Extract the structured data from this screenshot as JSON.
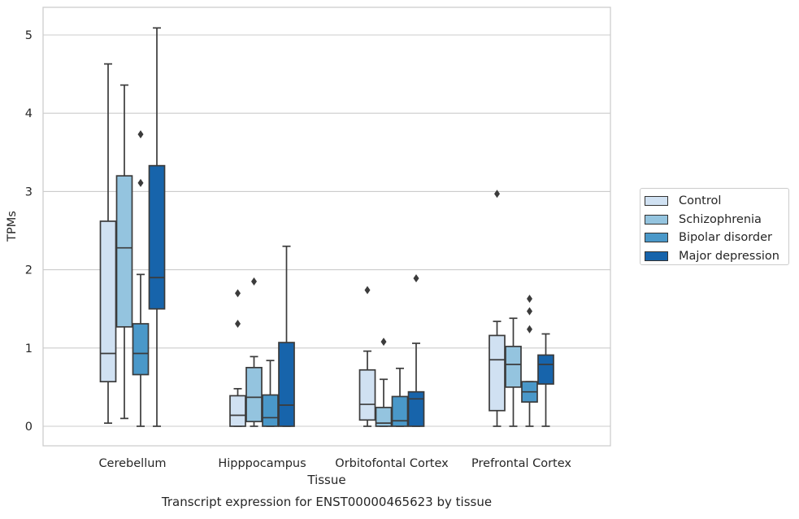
{
  "chart_data": {
    "type": "box",
    "title": "",
    "caption": "Transcript expression for ENST00000465623 by tissue",
    "xlabel": "Tissue",
    "ylabel": "TPMs",
    "ylim": [
      -0.25,
      5.35
    ],
    "yticks": [
      0,
      1,
      2,
      3,
      4,
      5
    ],
    "grid": "horizontal",
    "legend_position": "right",
    "categories": [
      "Cerebellum",
      "Hipppocampus",
      "Orbitofontal Cortex",
      "Prefrontal Cortex"
    ],
    "series": [
      {
        "name": "Control",
        "color": "#d0e1f2",
        "boxes": [
          {
            "min": 0.04,
            "q1": 0.57,
            "median": 0.93,
            "q3": 2.62,
            "max": 4.63,
            "outliers": []
          },
          {
            "min": 0.0,
            "q1": 0.0,
            "median": 0.14,
            "q3": 0.39,
            "max": 0.48,
            "outliers": [
              1.31,
              1.7
            ]
          },
          {
            "min": 0.0,
            "q1": 0.08,
            "median": 0.28,
            "q3": 0.72,
            "max": 0.96,
            "outliers": [
              1.74
            ]
          },
          {
            "min": 0.0,
            "q1": 0.2,
            "median": 0.85,
            "q3": 1.16,
            "max": 1.34,
            "outliers": [
              2.97
            ]
          }
        ]
      },
      {
        "name": "Schizophrenia",
        "color": "#94c4df",
        "boxes": [
          {
            "min": 0.1,
            "q1": 1.27,
            "median": 2.28,
            "q3": 3.2,
            "max": 4.36,
            "outliers": []
          },
          {
            "min": 0.0,
            "q1": 0.06,
            "median": 0.37,
            "q3": 0.75,
            "max": 0.89,
            "outliers": [
              1.85
            ]
          },
          {
            "min": 0.0,
            "q1": 0.0,
            "median": 0.04,
            "q3": 0.24,
            "max": 0.6,
            "outliers": [
              1.08
            ]
          },
          {
            "min": 0.0,
            "q1": 0.5,
            "median": 0.79,
            "q3": 1.02,
            "max": 1.38,
            "outliers": []
          }
        ]
      },
      {
        "name": "Bipolar disorder",
        "color": "#4a98c9",
        "boxes": [
          {
            "min": 0.0,
            "q1": 0.66,
            "median": 0.93,
            "q3": 1.31,
            "max": 1.94,
            "outliers": [
              3.11,
              3.73
            ]
          },
          {
            "min": 0.0,
            "q1": 0.0,
            "median": 0.11,
            "q3": 0.4,
            "max": 0.84,
            "outliers": []
          },
          {
            "min": 0.0,
            "q1": 0.0,
            "median": 0.07,
            "q3": 0.38,
            "max": 0.74,
            "outliers": []
          },
          {
            "min": 0.0,
            "q1": 0.31,
            "median": 0.44,
            "q3": 0.57,
            "max": 0.57,
            "outliers": [
              1.24,
              1.47,
              1.63
            ]
          }
        ]
      },
      {
        "name": "Major depression",
        "color": "#1764ab",
        "boxes": [
          {
            "min": 0.0,
            "q1": 1.5,
            "median": 1.9,
            "q3": 3.33,
            "max": 5.09,
            "outliers": []
          },
          {
            "min": 0.0,
            "q1": 0.0,
            "median": 0.27,
            "q3": 1.07,
            "max": 2.3,
            "outliers": []
          },
          {
            "min": 0.0,
            "q1": 0.0,
            "median": 0.35,
            "q3": 0.44,
            "max": 1.06,
            "outliers": [
              1.89
            ]
          },
          {
            "min": 0.0,
            "q1": 0.54,
            "median": 0.79,
            "q3": 0.91,
            "max": 1.18,
            "outliers": []
          }
        ]
      }
    ]
  }
}
